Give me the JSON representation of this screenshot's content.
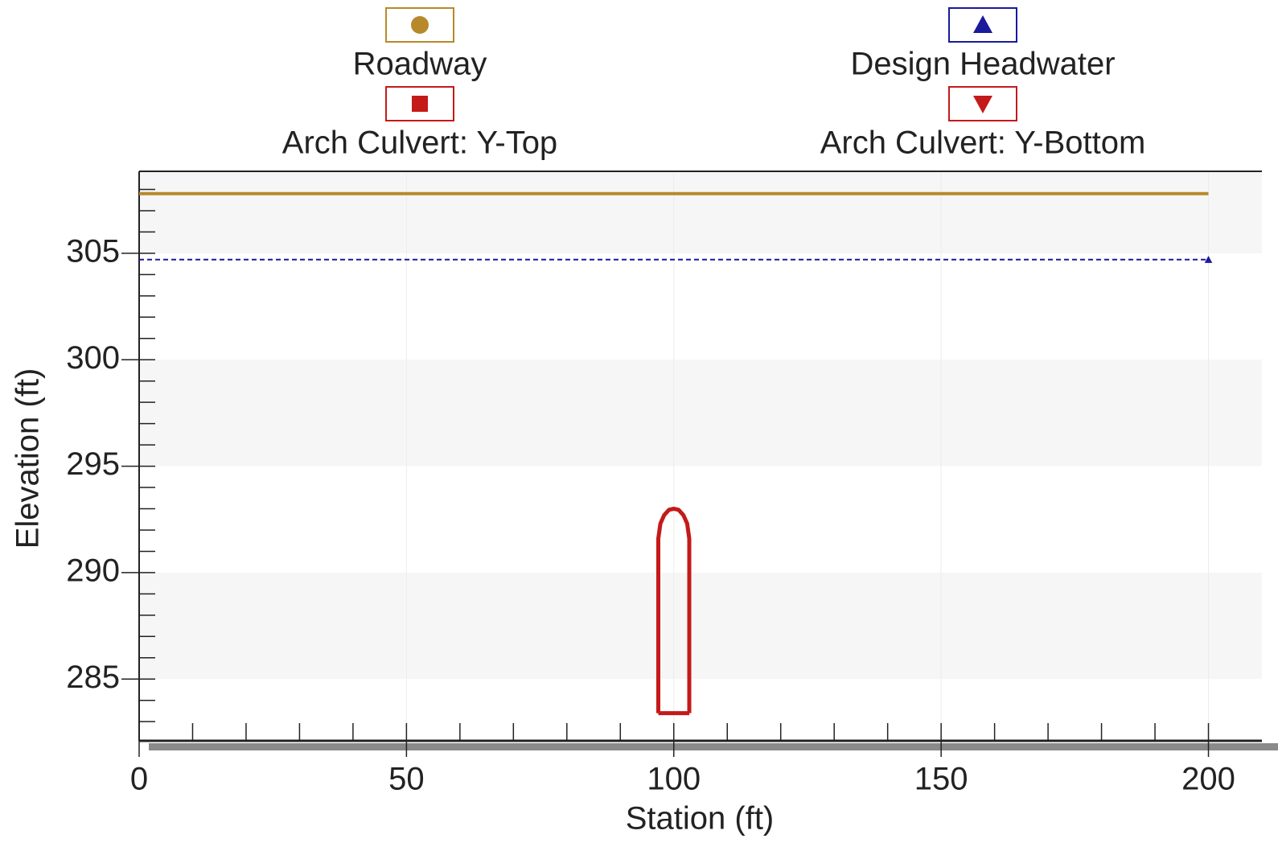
{
  "chart_data": {
    "type": "line",
    "xlabel": "Station (ft)",
    "ylabel": "Elevation (ft)",
    "xlim": [
      0,
      210
    ],
    "ylim": [
      282.1,
      308.85
    ],
    "xticks": [
      0,
      50,
      100,
      150,
      200
    ],
    "yticks": [
      285,
      290,
      295,
      300,
      305
    ],
    "xminorticks": [
      10,
      20,
      30,
      40,
      60,
      70,
      80,
      90,
      110,
      120,
      130,
      140,
      160,
      170,
      180,
      190
    ],
    "yminorticks": [
      283,
      284,
      286,
      287,
      288,
      289,
      291,
      292,
      293,
      294,
      296,
      297,
      298,
      299,
      301,
      302,
      303,
      304,
      306,
      307,
      308
    ],
    "grid": true,
    "legend": "top",
    "series": [
      {
        "name": "Roadway",
        "color": "#b8892a",
        "marker": "circle",
        "x": [
          0,
          200
        ],
        "values": [
          307.8,
          307.8
        ]
      },
      {
        "name": "Design Headwater",
        "color": "#1a1a9c",
        "marker": "triangle-up",
        "dash": true,
        "x": [
          0,
          200
        ],
        "values": [
          304.7,
          304.7
        ]
      },
      {
        "name": "Arch Culvert: Y-Top",
        "color": "#c41a1a",
        "marker": "square",
        "x": [
          97.1,
          97.1,
          97.5,
          98.2,
          99.1,
          100,
          100.9,
          101.8,
          102.5,
          102.9,
          102.9
        ],
        "values": [
          283.4,
          291.6,
          292.3,
          292.7,
          292.95,
          293.0,
          292.95,
          292.7,
          292.3,
          291.6,
          283.4
        ]
      },
      {
        "name": "Arch Culvert: Y-Bottom",
        "color": "#c41a1a",
        "marker": "triangle-down",
        "x": [
          97.1,
          102.9
        ],
        "values": [
          283.4,
          283.4
        ]
      }
    ]
  }
}
